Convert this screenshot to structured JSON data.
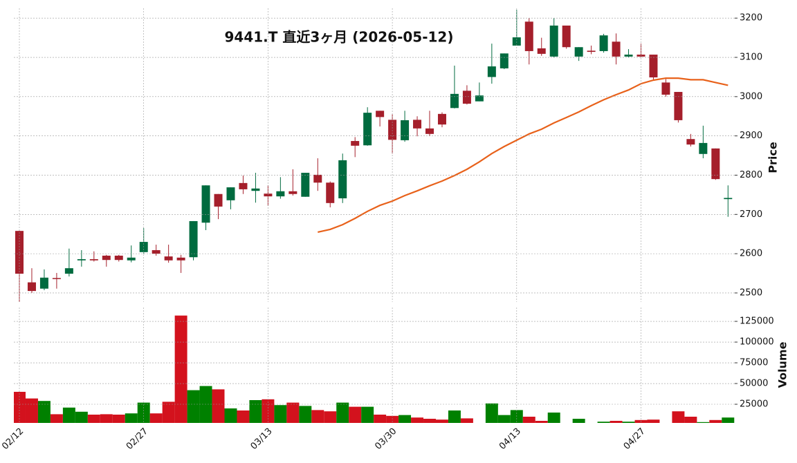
{
  "chart_data": {
    "type": "candlestick",
    "title": "9441.T  直近3ヶ月  (2026-05-12)",
    "categories": [
      "02/12",
      null,
      null,
      null,
      null,
      null,
      null,
      null,
      null,
      null,
      "02/27",
      null,
      null,
      null,
      null,
      null,
      null,
      null,
      null,
      null,
      "03/13",
      null,
      null,
      null,
      null,
      null,
      null,
      null,
      null,
      null,
      "03/30",
      null,
      null,
      null,
      null,
      null,
      null,
      null,
      null,
      null,
      "04/13",
      null,
      null,
      null,
      null,
      null,
      null,
      null,
      null,
      null,
      "04/27",
      null,
      null,
      null,
      null,
      null,
      null,
      null
    ],
    "open": [
      2658,
      2527,
      2511,
      2538,
      2549,
      2583,
      2586,
      2595,
      2595,
      2583,
      2604,
      2609,
      2593,
      2590,
      2591,
      2679,
      2752,
      2736,
      2780,
      2760,
      2753,
      2746,
      2759,
      2745,
      2801,
      2781,
      2741,
      2887,
      2876,
      2964,
      2941,
      2889,
      2941,
      2919,
      2956,
      2971,
      3015,
      2988,
      3050,
      3072,
      3130,
      3191,
      3123,
      3102,
      3181,
      3102,
      3117,
      3116,
      3140,
      3102,
      3107,
      3107,
      3036,
      3012,
      2892,
      2854,
      2868,
      2739
    ],
    "high": [
      2658,
      2563,
      2560,
      2551,
      2613,
      2609,
      2606,
      2597,
      2597,
      2621,
      2665,
      2623,
      2623,
      2597,
      2683,
      2774,
      2752,
      2769,
      2799,
      2806,
      2774,
      2795,
      2815,
      2806,
      2843,
      2784,
      2855,
      2897,
      2973,
      2964,
      2955,
      2964,
      2950,
      2964,
      2960,
      3079,
      3029,
      3036,
      3135,
      3110,
      3221,
      3200,
      3150,
      3200,
      3181,
      3126,
      3130,
      3160,
      3161,
      3121,
      3135,
      3107,
      3045,
      3012,
      2905,
      2926,
      2868,
      2774
    ],
    "low": [
      2477,
      2500,
      2507,
      2511,
      2542,
      2567,
      2580,
      2567,
      2580,
      2578,
      2600,
      2595,
      2577,
      2551,
      2583,
      2660,
      2688,
      2713,
      2752,
      2730,
      2722,
      2740,
      2748,
      2745,
      2760,
      2718,
      2729,
      2846,
      2875,
      2924,
      2855,
      2885,
      2899,
      2900,
      2922,
      2970,
      2980,
      2988,
      3033,
      3070,
      3130,
      3082,
      3104,
      3100,
      3122,
      3091,
      3108,
      3112,
      3082,
      3100,
      3100,
      3043,
      3000,
      2934,
      2873,
      2843,
      2788,
      2694
    ],
    "close": [
      2549,
      2505,
      2539,
      2536,
      2563,
      2586,
      2583,
      2584,
      2584,
      2590,
      2630,
      2600,
      2583,
      2583,
      2683,
      2774,
      2720,
      2769,
      2764,
      2766,
      2746,
      2759,
      2752,
      2806,
      2781,
      2729,
      2838,
      2875,
      2959,
      2948,
      2890,
      2940,
      2919,
      2905,
      2929,
      3007,
      2982,
      3003,
      3077,
      3110,
      3151,
      3116,
      3109,
      3181,
      3126,
      3126,
      3114,
      3156,
      3102,
      3107,
      3102,
      3049,
      3005,
      2940,
      2878,
      2882,
      2790,
      2742
    ],
    "up_color": "#006b3f",
    "down_color": "#a51f2b",
    "ylabel": "Price",
    "ylim": [
      2477,
      3225
    ],
    "yticks": [
      2500,
      2600,
      2700,
      2800,
      2900,
      3000,
      3100,
      3200
    ],
    "grid": true,
    "ma": {
      "color": "#e8611a",
      "values": [
        null,
        null,
        null,
        null,
        null,
        null,
        null,
        null,
        null,
        null,
        null,
        null,
        null,
        null,
        null,
        null,
        null,
        null,
        null,
        null,
        null,
        null,
        null,
        null,
        2655,
        2662,
        2674,
        2690,
        2708,
        2723,
        2734,
        2748,
        2760,
        2773,
        2785,
        2799,
        2815,
        2834,
        2855,
        2873,
        2889,
        2905,
        2917,
        2933,
        2947,
        2961,
        2977,
        2992,
        3005,
        3017,
        3033,
        3042,
        3047,
        3047,
        3043,
        3043,
        3036,
        3029
      ]
    },
    "volume": {
      "ylabel": "Volume",
      "up_color": "#008000",
      "down_color": "#d3121d",
      "ylim": [
        2500,
        141700
      ],
      "yticks": [
        25000,
        50000,
        75000,
        100000,
        125000
      ],
      "values": [
        40000,
        32000,
        29000,
        13000,
        21000,
        16000,
        12500,
        13000,
        12500,
        14000,
        27000,
        14000,
        28000,
        132000,
        42000,
        47000,
        43000,
        20000,
        17500,
        30000,
        31000,
        24000,
        27000,
        23000,
        18000,
        16500,
        27000,
        22000,
        22000,
        12500,
        11000,
        12000,
        9000,
        7500,
        6500,
        17500,
        8000,
        0,
        26000,
        12000,
        18000,
        10000,
        5000,
        15000,
        2500,
        7500,
        0,
        4000,
        5000,
        4000,
        6000,
        6500,
        0,
        16500,
        10000,
        3500,
        6000,
        9000
      ]
    }
  }
}
